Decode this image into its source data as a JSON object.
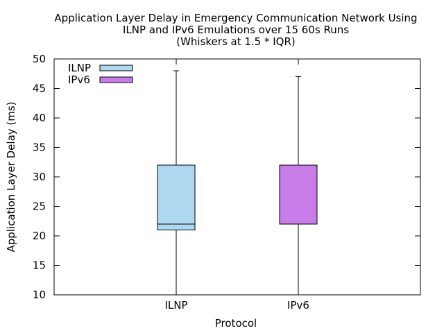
{
  "chart_data": {
    "type": "boxplot",
    "title": [
      "Application Layer Delay in Emergency Communication Network Using",
      "ILNP and IPv6 Emulations over 15 60s Runs",
      "(Whiskers at 1.5 * IQR)"
    ],
    "xlabel": "Protocol",
    "ylabel": "Application Layer Delay (ms)",
    "ylim": [
      10,
      50
    ],
    "yticks": [
      10,
      15,
      20,
      25,
      30,
      35,
      40,
      45,
      50
    ],
    "categories": [
      "ILNP",
      "IPv6"
    ],
    "grid": false,
    "legend_position": "top-left",
    "series": [
      {
        "name": "ILNP",
        "color": "#add8f0",
        "q1": 21,
        "median": 22,
        "q3": 32,
        "whisker_low": 10,
        "whisker_high": 48
      },
      {
        "name": "IPv6",
        "color": "#c87ce8",
        "q1": 22,
        "median": 22,
        "q3": 32,
        "whisker_low": 10,
        "whisker_high": 47
      }
    ]
  }
}
